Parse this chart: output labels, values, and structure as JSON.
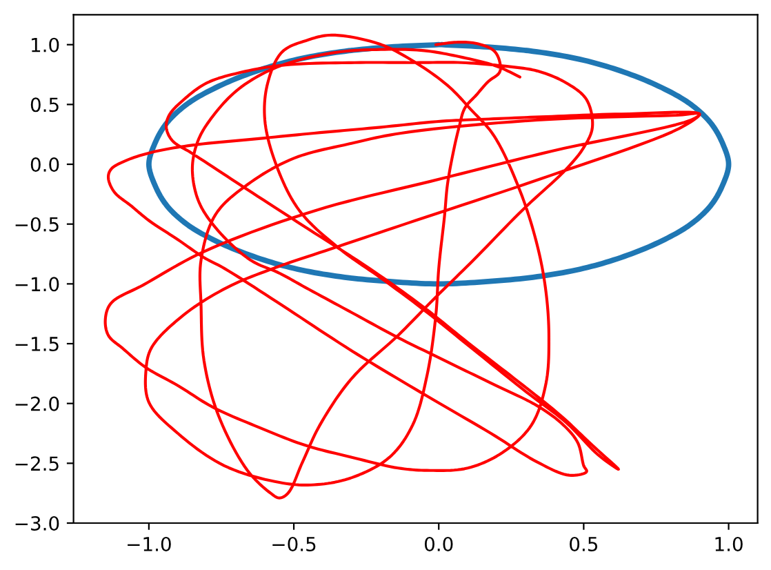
{
  "chart_data": {
    "type": "line",
    "line_style": "solid",
    "xlim": [
      -1.26,
      1.1
    ],
    "ylim": [
      -3.0,
      1.25
    ],
    "xticks": [
      {
        "value": -1.0,
        "label": "−1.0"
      },
      {
        "value": -0.5,
        "label": "−0.5"
      },
      {
        "value": 0.0,
        "label": "0.0"
      },
      {
        "value": 0.5,
        "label": "0.5"
      },
      {
        "value": 1.0,
        "label": "1.0"
      }
    ],
    "yticks": [
      {
        "value": -3.0,
        "label": "−3.0"
      },
      {
        "value": -2.5,
        "label": "−2.5"
      },
      {
        "value": -2.0,
        "label": "−2.0"
      },
      {
        "value": -1.5,
        "label": "−1.5"
      },
      {
        "value": -1.0,
        "label": "−1.0"
      },
      {
        "value": -0.5,
        "label": "−0.5"
      },
      {
        "value": 0.0,
        "label": "0.0"
      },
      {
        "value": 0.5,
        "label": "0.5"
      },
      {
        "value": 1.0,
        "label": "1.0"
      }
    ],
    "series": [
      {
        "color": "#1f77b4",
        "x": [
          0.0,
          -0.17,
          -0.34,
          -0.5,
          -0.64,
          -0.77,
          -0.87,
          -0.94,
          -0.98,
          -1.0,
          -0.98,
          -0.94,
          -0.87,
          -0.77,
          -0.64,
          -0.5,
          -0.34,
          -0.17,
          0.0,
          0.17,
          0.34,
          0.5,
          0.64,
          0.77,
          0.87,
          0.94,
          0.98,
          1.0,
          0.98,
          0.94,
          0.87,
          0.77,
          0.64,
          0.5,
          0.34,
          0.17,
          0.01
        ],
        "values": [
          1.0,
          0.98,
          0.94,
          0.87,
          0.77,
          0.64,
          0.5,
          0.34,
          0.17,
          0.0,
          -0.17,
          -0.34,
          -0.5,
          -0.64,
          -0.77,
          -0.87,
          -0.94,
          -0.98,
          -1.0,
          -0.98,
          -0.94,
          -0.87,
          -0.77,
          -0.64,
          -0.5,
          -0.34,
          -0.17,
          0.0,
          0.17,
          0.34,
          0.5,
          0.64,
          0.77,
          0.87,
          0.94,
          0.98,
          1.0
        ]
      },
      {
        "color": "#ff0000",
        "x": [
          -0.01,
          0.06,
          0.13,
          0.19,
          0.21,
          0.21,
          0.17,
          0.13,
          0.09,
          0.07,
          0.05,
          0.03,
          0.02,
          0.0,
          -0.01,
          -0.04,
          -0.09,
          -0.17,
          -0.3,
          -0.43,
          -0.55,
          -0.74,
          -0.9,
          -1.0,
          -1.01,
          -0.99,
          -0.88,
          -0.73,
          -0.57,
          -0.35,
          -0.08,
          0.39,
          0.83,
          0.9,
          0.82,
          0.34,
          -0.13,
          -0.31,
          -0.5,
          -0.66,
          -0.77,
          -0.82,
          -0.82,
          -0.81,
          -0.76,
          -0.66,
          -0.58,
          -0.55,
          -0.52,
          -0.47,
          -0.41,
          -0.3,
          -0.14,
          -0.01,
          0.12,
          0.29,
          0.44,
          0.5,
          0.53,
          0.51,
          0.44,
          0.34,
          0.23,
          0.08,
          -0.08,
          -0.29,
          -0.53,
          -0.68,
          -0.8,
          -0.88,
          -0.93,
          -0.94,
          -0.92,
          -0.85,
          -0.68,
          -0.47,
          -0.24,
          -0.06,
          0.1,
          0.26,
          0.42,
          0.53,
          0.62,
          0.55,
          0.44,
          0.3,
          0.12,
          -0.05,
          -0.2,
          -0.34,
          -0.48,
          -0.56,
          -0.6,
          -0.59,
          -0.54,
          -0.45,
          -0.37,
          -0.21,
          -0.1,
          0.03,
          0.11,
          0.19,
          0.28,
          0.34,
          0.37,
          0.38,
          0.37,
          0.32,
          0.22,
          0.1,
          -0.03,
          -0.14,
          -0.3,
          -0.46,
          -0.62,
          -0.78,
          -0.9,
          -1.01,
          -1.09,
          -1.14,
          -1.15,
          -1.13,
          -1.02,
          -0.81,
          -0.43,
          0.01,
          0.39,
          0.87,
          0.9,
          0.63,
          0.39,
          0.19,
          0.01,
          -0.2,
          -0.43,
          -0.64,
          -0.85,
          -0.99,
          -1.08,
          -1.13,
          -1.14,
          -1.12,
          -1.06,
          -1.0,
          -0.9,
          -0.81,
          -0.74,
          -0.54,
          -0.3,
          -0.06,
          0.18,
          0.34,
          0.45,
          0.51,
          0.5,
          0.48,
          0.43,
          0.34,
          0.18,
          0.02,
          -0.14,
          -0.3,
          -0.46,
          -0.55,
          -0.65,
          -0.77,
          -0.83,
          -0.85,
          -0.83,
          -0.78,
          -0.69,
          -0.56,
          -0.37,
          -0.2,
          -0.05,
          0.07,
          0.2,
          0.28
        ],
        "values": [
          1.0,
          1.02,
          1.01,
          0.95,
          0.86,
          0.77,
          0.69,
          0.58,
          0.47,
          0.31,
          0.1,
          -0.17,
          -0.43,
          -0.87,
          -1.26,
          -1.76,
          -2.18,
          -2.45,
          -2.62,
          -2.68,
          -2.66,
          -2.52,
          -2.25,
          -1.99,
          -1.72,
          -1.53,
          -1.26,
          -1.03,
          -0.87,
          -0.69,
          -0.47,
          -0.09,
          0.3,
          0.42,
          0.41,
          0.37,
          0.26,
          0.17,
          0.05,
          -0.17,
          -0.42,
          -0.8,
          -1.18,
          -1.64,
          -2.1,
          -2.56,
          -2.75,
          -2.79,
          -2.75,
          -2.49,
          -2.18,
          -1.79,
          -1.43,
          -1.11,
          -0.8,
          -0.38,
          -0.04,
          0.14,
          0.31,
          0.54,
          0.68,
          0.78,
          0.82,
          0.85,
          0.85,
          0.85,
          0.83,
          0.77,
          0.68,
          0.54,
          0.41,
          0.31,
          0.2,
          0.09,
          -0.18,
          -0.51,
          -0.87,
          -1.18,
          -1.49,
          -1.79,
          -2.1,
          -2.35,
          -2.55,
          -2.43,
          -2.16,
          -1.9,
          -1.55,
          -1.22,
          -0.95,
          -0.71,
          -0.39,
          -0.01,
          0.37,
          0.68,
          0.94,
          1.04,
          1.08,
          1.01,
          0.88,
          0.66,
          0.46,
          0.24,
          -0.22,
          -0.68,
          -1.07,
          -1.45,
          -1.83,
          -2.18,
          -2.41,
          -2.54,
          -2.56,
          -2.54,
          -2.45,
          -2.35,
          -2.2,
          -2.03,
          -1.85,
          -1.7,
          -1.54,
          -1.43,
          -1.29,
          -1.16,
          -1.01,
          -0.73,
          -0.39,
          -0.12,
          0.11,
          0.37,
          0.42,
          0.42,
          0.4,
          0.38,
          0.36,
          0.31,
          0.26,
          0.21,
          0.16,
          0.1,
          0.03,
          -0.04,
          -0.11,
          -0.23,
          -0.35,
          -0.47,
          -0.63,
          -0.78,
          -0.87,
          -1.18,
          -1.56,
          -1.91,
          -2.25,
          -2.49,
          -2.6,
          -2.57,
          -2.52,
          -2.33,
          -2.18,
          -2.02,
          -1.83,
          -1.64,
          -1.45,
          -1.24,
          -1.03,
          -0.91,
          -0.8,
          -0.53,
          -0.3,
          -0.03,
          0.2,
          0.4,
          0.63,
          0.81,
          0.93,
          0.96,
          0.95,
          0.9,
          0.82,
          0.73
        ]
      }
    ]
  }
}
